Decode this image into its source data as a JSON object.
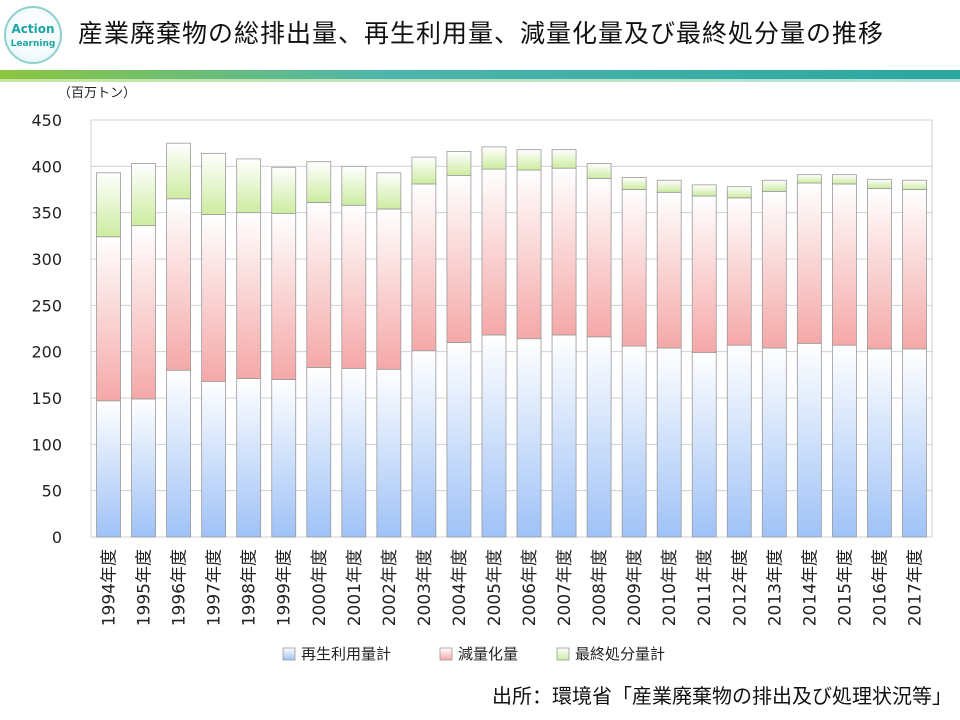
{
  "logo": {
    "line1": "Action",
    "line2": "Learning",
    "color": "#1aa6a6"
  },
  "header": {
    "title": "産業廃棄物の総排出量、再生利用量、減量化量及び最終処分量の推移"
  },
  "source": "出所：環境省「産業廃棄物の排出及び処理状況等」",
  "colors": {
    "recycle": "#9fc2f7",
    "reduce": "#f5a8a8",
    "final": "#cdeca0",
    "grid": "#d0d0d0"
  },
  "chart_data": {
    "type": "bar",
    "stacked": true,
    "unit_label": "（百万トン）",
    "categories": [
      "1994年度",
      "1995年度",
      "1996年度",
      "1997年度",
      "1998年度",
      "1999年度",
      "2000年度",
      "2001年度",
      "2002年度",
      "2003年度",
      "2004年度",
      "2005年度",
      "2006年度",
      "2007年度",
      "2008年度",
      "2009年度",
      "2010年度",
      "2011年度",
      "2012年度",
      "2013年度",
      "2014年度",
      "2015年度",
      "2016年度",
      "2017年度"
    ],
    "series": [
      {
        "name": "再生利用量計",
        "values": [
          147,
          149,
          180,
          168,
          171,
          170,
          183,
          182,
          181,
          201,
          210,
          218,
          214,
          218,
          216,
          206,
          204,
          199,
          207,
          204,
          209,
          207,
          203,
          203
        ]
      },
      {
        "name": "減量化量",
        "values": [
          177,
          187,
          185,
          180,
          179,
          179,
          178,
          176,
          173,
          180,
          180,
          179,
          182,
          180,
          171,
          169,
          168,
          169,
          159,
          169,
          173,
          174,
          173,
          172
        ]
      },
      {
        "name": "最終処分量計",
        "values": [
          69,
          67,
          60,
          66,
          58,
          50,
          44,
          42,
          39,
          29,
          26,
          24,
          22,
          20,
          16,
          13,
          13,
          12,
          12,
          12,
          9,
          10,
          10,
          10
        ]
      }
    ],
    "ylim": [
      0,
      450
    ],
    "yticks": [
      0,
      50,
      100,
      150,
      200,
      250,
      300,
      350,
      400,
      450
    ],
    "legend": "bottom",
    "grid": true
  }
}
